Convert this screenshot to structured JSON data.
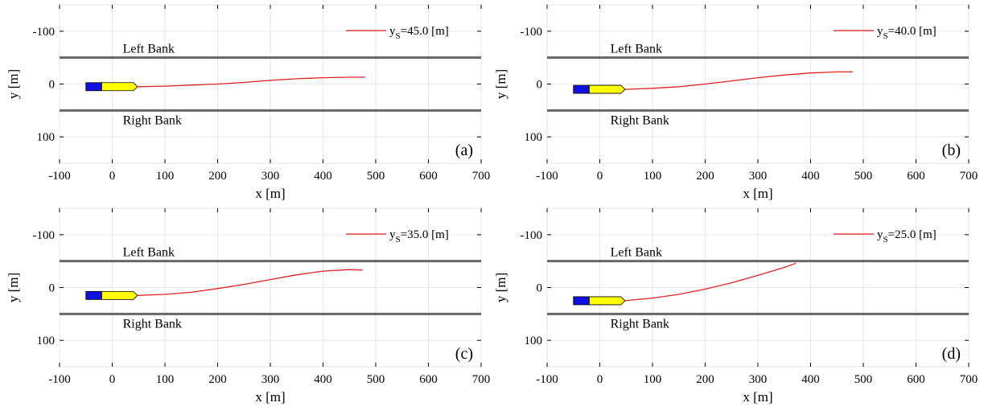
{
  "chart_data": [
    {
      "type": "line",
      "panel_label": "(a)",
      "xlabel": "x [m]",
      "ylabel": "y [m]",
      "xlim": [
        -100,
        700
      ],
      "ylim": [
        -150,
        150
      ],
      "y_axis_reversed": true,
      "grid": true,
      "legend_position": "top-right",
      "xticks": [
        -100,
        0,
        100,
        200,
        300,
        400,
        500,
        600,
        700
      ],
      "yticks": [
        -100,
        0,
        100
      ],
      "bank_y": [
        -50,
        50
      ],
      "bank_labels": [
        "Left Bank",
        "Right Bank"
      ],
      "ship": {
        "x_start": -50,
        "x_end": 48,
        "y": 5,
        "colors": {
          "stern": "#1010e0",
          "bow": "#ffff00"
        }
      },
      "series": [
        {
          "name": "yS=45.0 [m]",
          "legend_main": "y",
          "legend_sub": "S",
          "legend_rest": "=45.0 [m]",
          "color": "#e02020",
          "x": [
            48,
            100,
            150,
            200,
            250,
            300,
            350,
            400,
            450,
            480
          ],
          "y": [
            5,
            4,
            2,
            0,
            -3,
            -7,
            -10,
            -12,
            -13,
            -13
          ]
        }
      ]
    },
    {
      "type": "line",
      "panel_label": "(b)",
      "xlabel": "x [m]",
      "ylabel": "y [m]",
      "xlim": [
        -100,
        700
      ],
      "ylim": [
        -150,
        150
      ],
      "y_axis_reversed": true,
      "grid": true,
      "legend_position": "top-right",
      "xticks": [
        -100,
        0,
        100,
        200,
        300,
        400,
        500,
        600,
        700
      ],
      "yticks": [
        -100,
        0,
        100
      ],
      "bank_y": [
        -50,
        50
      ],
      "bank_labels": [
        "Left Bank",
        "Right Bank"
      ],
      "ship": {
        "x_start": -50,
        "x_end": 48,
        "y": 10,
        "colors": {
          "stern": "#1010e0",
          "bow": "#ffff00"
        }
      },
      "series": [
        {
          "name": "yS=40.0 [m]",
          "legend_main": "y",
          "legend_sub": "S",
          "legend_rest": "=40.0 [m]",
          "color": "#e02020",
          "x": [
            48,
            100,
            150,
            200,
            250,
            300,
            350,
            400,
            450,
            480
          ],
          "y": [
            10,
            8,
            5,
            0,
            -6,
            -12,
            -17,
            -21,
            -23,
            -23
          ]
        }
      ]
    },
    {
      "type": "line",
      "panel_label": "(c)",
      "xlabel": "x [m]",
      "ylabel": "y [m]",
      "xlim": [
        -100,
        700
      ],
      "ylim": [
        -150,
        150
      ],
      "y_axis_reversed": true,
      "grid": true,
      "legend_position": "top-right",
      "xticks": [
        -100,
        0,
        100,
        200,
        300,
        400,
        500,
        600,
        700
      ],
      "yticks": [
        -100,
        0,
        100
      ],
      "bank_y": [
        -50,
        50
      ],
      "bank_labels": [
        "Left Bank",
        "Right Bank"
      ],
      "ship": {
        "x_start": -50,
        "x_end": 48,
        "y": 15,
        "colors": {
          "stern": "#1010e0",
          "bow": "#ffff00"
        }
      },
      "series": [
        {
          "name": "yS=35.0 [m]",
          "legend_main": "y",
          "legend_sub": "S",
          "legend_rest": "=35.0 [m]",
          "color": "#e02020",
          "x": [
            48,
            100,
            150,
            200,
            250,
            300,
            350,
            400,
            450,
            475
          ],
          "y": [
            15,
            13,
            9,
            2,
            -6,
            -15,
            -24,
            -31,
            -34,
            -33
          ]
        }
      ]
    },
    {
      "type": "line",
      "panel_label": "(d)",
      "xlabel": "x [m]",
      "ylabel": "y [m]",
      "xlim": [
        -100,
        700
      ],
      "ylim": [
        -150,
        150
      ],
      "y_axis_reversed": true,
      "grid": true,
      "legend_position": "top-right",
      "xticks": [
        -100,
        0,
        100,
        200,
        300,
        400,
        500,
        600,
        700
      ],
      "yticks": [
        -100,
        0,
        100
      ],
      "bank_y": [
        -50,
        50
      ],
      "bank_labels": [
        "Left Bank",
        "Right Bank"
      ],
      "ship": {
        "x_start": -50,
        "x_end": 48,
        "y": 25,
        "colors": {
          "stern": "#1010e0",
          "bow": "#ffff00"
        }
      },
      "series": [
        {
          "name": "yS=25.0 [m]",
          "legend_main": "y",
          "legend_sub": "S",
          "legend_rest": "=25.0 [m]",
          "color": "#e02020",
          "x": [
            48,
            100,
            150,
            200,
            250,
            300,
            350,
            372
          ],
          "y": [
            25,
            20,
            13,
            3,
            -9,
            -23,
            -38,
            -46
          ]
        }
      ]
    }
  ]
}
